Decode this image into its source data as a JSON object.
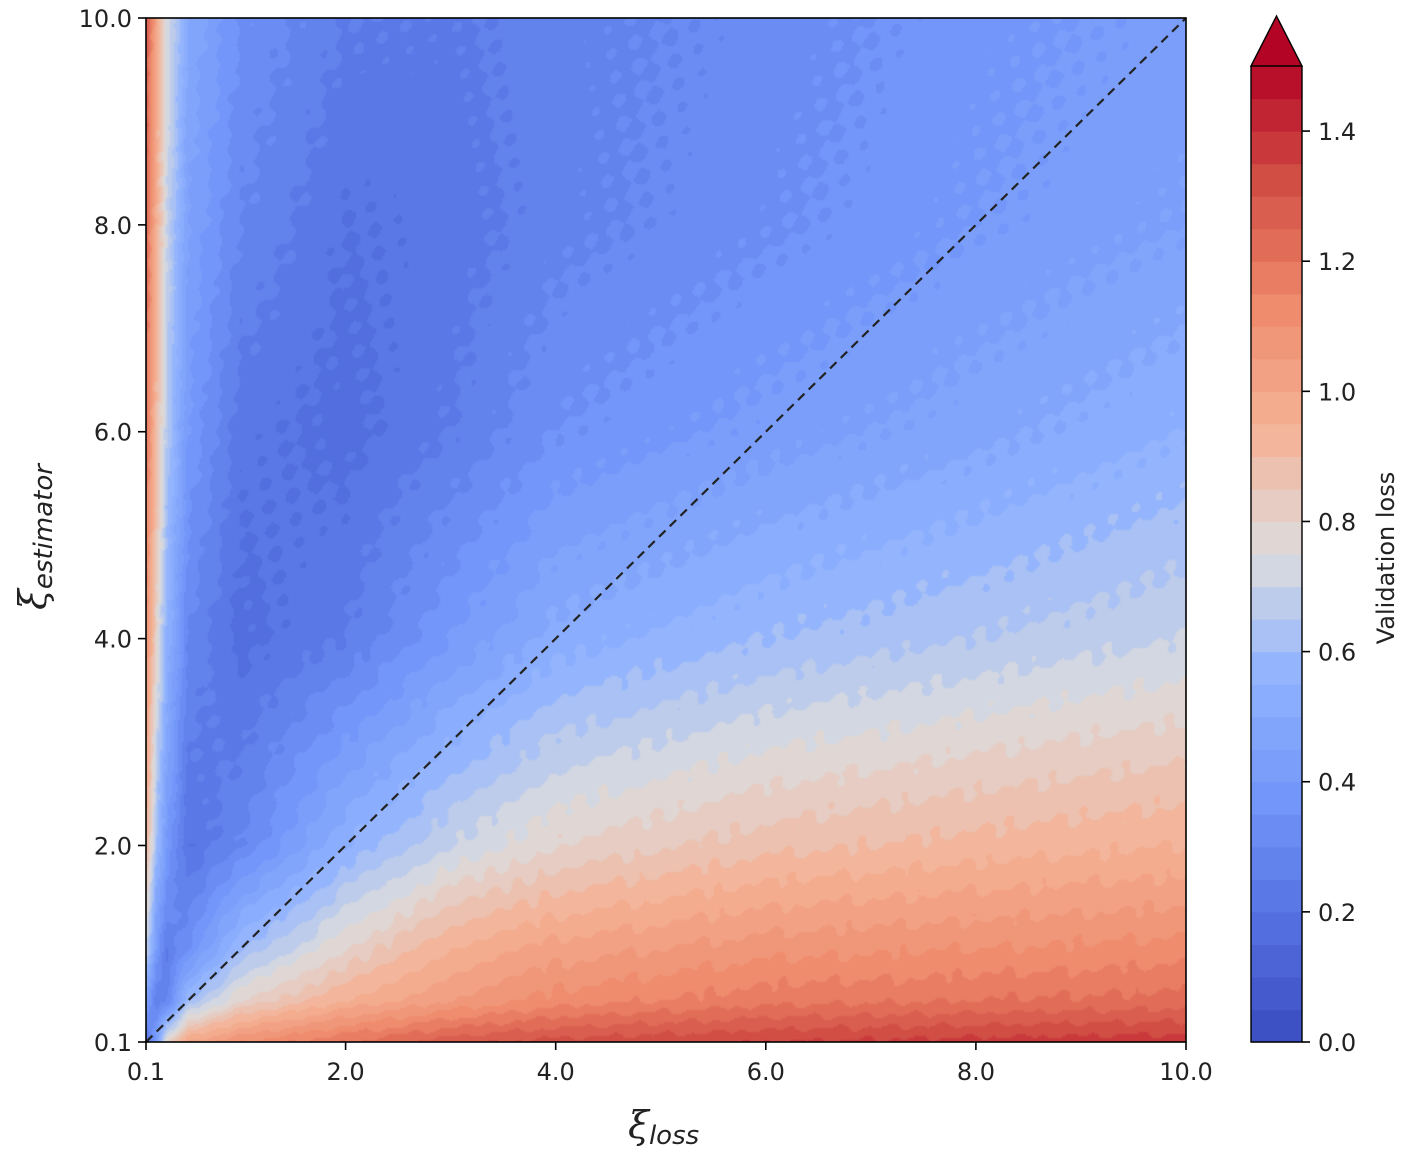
{
  "chart_data": {
    "type": "heatmap",
    "subtype": "filled-contour",
    "colormap": "coolwarm",
    "x_axis": {
      "symbol": "ξ",
      "subscript": "loss",
      "range": [
        0.1,
        10.0
      ],
      "ticks": [
        0.1,
        2.0,
        4.0,
        6.0,
        8.0,
        10.0
      ],
      "tick_labels": [
        "0.1",
        "2.0",
        "4.0",
        "6.0",
        "8.0",
        "10.0"
      ]
    },
    "y_axis": {
      "symbol": "ξ",
      "subscript": "estimator",
      "range": [
        0.1,
        10.0
      ],
      "ticks": [
        0.1,
        2.0,
        4.0,
        6.0,
        8.0,
        10.0
      ],
      "tick_labels": [
        "0.1",
        "2.0",
        "4.0",
        "6.0",
        "8.0",
        "10.0"
      ]
    },
    "colorbar": {
      "label": "Validation loss",
      "range": [
        0.0,
        1.5
      ],
      "levels": 30,
      "extend": "max",
      "ticks": [
        0.0,
        0.2,
        0.4,
        0.6,
        0.8,
        1.0,
        1.2,
        1.4
      ],
      "tick_labels": [
        "0.0",
        "0.2",
        "0.4",
        "0.6",
        "0.8",
        "1.0",
        "1.2",
        "1.4"
      ]
    },
    "reference_line": {
      "style": "dashed",
      "color": "#222222",
      "from": [
        0.1,
        0.1
      ],
      "to": [
        10.0,
        10.0
      ]
    },
    "samples": {
      "x": [
        0.1,
        0.2,
        0.3,
        0.5,
        1.0,
        2.0,
        3.0,
        4.0,
        6.0,
        8.0,
        10.0
      ],
      "y": [
        0.1,
        0.5,
        1.0,
        2.0,
        4.0,
        6.0,
        8.0,
        10.0
      ],
      "z": [
        [
          0.2,
          0.45,
          0.7,
          0.95,
          1.1,
          1.2,
          1.25,
          1.3
        ],
        [
          0.45,
          0.25,
          0.4,
          0.6,
          0.8,
          0.9,
          0.95,
          1.0
        ],
        [
          0.8,
          0.3,
          0.25,
          0.4,
          0.55,
          0.65,
          0.7,
          0.75
        ],
        [
          1.0,
          0.6,
          0.35,
          0.2,
          0.3,
          0.4,
          0.45,
          0.5
        ],
        [
          1.1,
          0.8,
          0.6,
          0.3,
          0.18,
          0.22,
          0.3,
          0.35
        ],
        [
          1.2,
          0.95,
          0.8,
          0.55,
          0.25,
          0.18,
          0.2,
          0.25
        ],
        [
          1.28,
          1.05,
          0.95,
          0.7,
          0.4,
          0.25,
          0.22,
          0.24
        ],
        [
          1.32,
          1.12,
          1.02,
          0.8,
          0.52,
          0.35,
          0.28,
          0.28
        ],
        [
          1.35,
          1.18,
          1.08,
          0.88,
          0.6,
          0.42,
          0.34,
          0.32
        ],
        [
          1.37,
          1.2,
          1.1,
          0.92,
          0.65,
          0.48,
          0.4,
          0.38
        ],
        [
          1.38,
          1.22,
          1.12,
          0.95,
          0.7,
          0.55,
          0.45,
          0.42
        ]
      ]
    },
    "colors": {
      "low": "#3b4cc0",
      "mid": "#dddddd",
      "high": "#b40426",
      "over": "#b40426"
    }
  }
}
